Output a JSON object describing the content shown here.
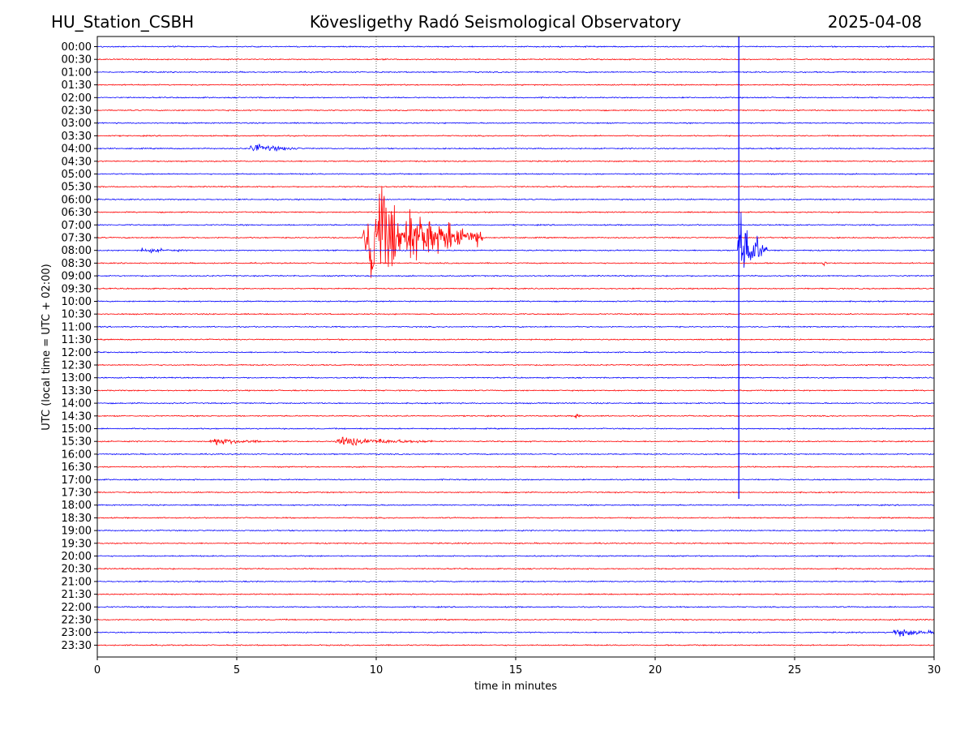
{
  "header": {
    "station": "HU_Station_CSBH",
    "title": "Kövesligethy Radó Seismological Observatory",
    "date": "2025-04-08"
  },
  "chart_data": {
    "type": "line",
    "xlabel": "time in minutes",
    "ylabel": "UTC (local time = UTC + 02:00)",
    "xlim": [
      0,
      30
    ],
    "x_ticks": [
      0,
      5,
      10,
      15,
      20,
      25,
      30
    ],
    "grid": "vertical dotted lines at 5-minute intervals",
    "row_labels": [
      "00:00",
      "00:30",
      "01:00",
      "01:30",
      "02:00",
      "02:30",
      "03:00",
      "03:30",
      "04:00",
      "04:30",
      "05:00",
      "05:30",
      "06:00",
      "06:30",
      "07:00",
      "07:30",
      "08:00",
      "08:30",
      "09:00",
      "09:30",
      "10:00",
      "10:30",
      "11:00",
      "11:30",
      "12:00",
      "12:30",
      "13:00",
      "13:30",
      "14:00",
      "14:30",
      "15:00",
      "15:30",
      "16:00",
      "16:30",
      "17:00",
      "17:30",
      "18:00",
      "18:30",
      "19:00",
      "19:30",
      "20:00",
      "20:30",
      "21:00",
      "21:30",
      "22:00",
      "22:30",
      "23:00",
      "23:30"
    ],
    "trace_colors": [
      "#0000ff",
      "#ff0000"
    ],
    "events": [
      {
        "row": "04:00",
        "start_min": 5.4,
        "end_min": 7.3,
        "amplitude": 0.35
      },
      {
        "row": "07:30",
        "start_min": 9.5,
        "end_min": 13.8,
        "amplitude": 4.0
      },
      {
        "row": "08:00",
        "start_min": 1.5,
        "end_min": 3.2,
        "amplitude": 0.15
      },
      {
        "row": "08:00",
        "start_min": 22.95,
        "end_min": 24.0,
        "amplitude": 3.0
      },
      {
        "row": "08:30",
        "start_min": 26.0,
        "end_min": 26.2,
        "amplitude": 0.4
      },
      {
        "row": "14:30",
        "start_min": 17.1,
        "end_min": 17.3,
        "amplitude": 0.4
      },
      {
        "row": "15:30",
        "start_min": 4.0,
        "end_min": 6.0,
        "amplitude": 0.3
      },
      {
        "row": "15:30",
        "start_min": 8.5,
        "end_min": 12.0,
        "amplitude": 0.35
      },
      {
        "row": "23:00",
        "start_min": 28.5,
        "end_min": 30.0,
        "amplitude": 0.35
      }
    ],
    "spike": {
      "minute": 23.0,
      "from_row": "00:00",
      "to_row": "17:30",
      "color": "#0000ff"
    }
  }
}
